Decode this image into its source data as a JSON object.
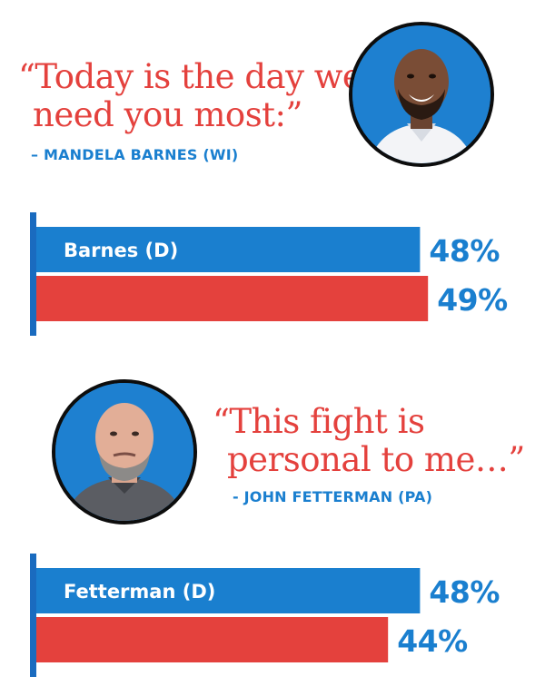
{
  "colors": {
    "blue": "#1a7fcf",
    "red": "#e4413d",
    "axis": "#1a6bbf"
  },
  "chart_data": [
    {
      "type": "bar",
      "orientation": "horizontal",
      "categories": [
        "Barnes (D)",
        ""
      ],
      "values": [
        48,
        49
      ],
      "value_labels": [
        "48%",
        "49%"
      ],
      "bar_colors": [
        "#1a7fcf",
        "#e4413d"
      ],
      "xlim": [
        0,
        100
      ],
      "quote": {
        "text_line1": "“Today is the day we",
        "text_line2": "need you most:”",
        "attribution": "– MANDELA BARNES (WI)"
      },
      "portrait_icon": "person-portrait-icon"
    },
    {
      "type": "bar",
      "orientation": "horizontal",
      "categories": [
        "Fetterman (D)",
        ""
      ],
      "values": [
        48,
        44
      ],
      "value_labels": [
        "48%",
        "44%"
      ],
      "bar_colors": [
        "#1a7fcf",
        "#e4413d"
      ],
      "xlim": [
        0,
        100
      ],
      "quote": {
        "text_line1": "“This fight is",
        "text_line2": "personal to me…”",
        "attribution": "- JOHN FETTERMAN (PA)"
      },
      "portrait_icon": "person-portrait-icon"
    }
  ]
}
